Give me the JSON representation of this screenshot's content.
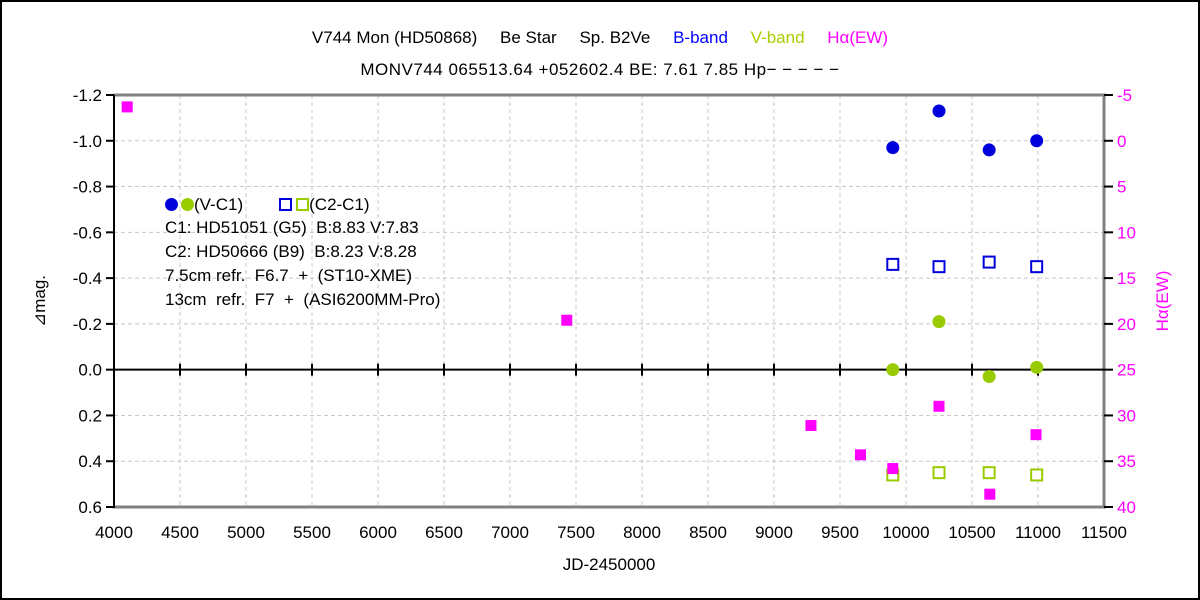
{
  "title": {
    "segments": [
      {
        "text": "V744 Mon (HD50868)",
        "color": "#000000"
      },
      {
        "text": "Be Star",
        "color": "#000000"
      },
      {
        "text": "Sp. B2Ve",
        "color": "#000000"
      },
      {
        "text": "B-band",
        "color": "#0000ff"
      },
      {
        "text": "V-band",
        "color": "#aacc00"
      },
      {
        "text": "Hα(EW)",
        "color": "#ff00ff"
      }
    ],
    "subtitle": "MONV744 065513.64 +052602.4 BE: 7.61 7.85 Hp− − − − −"
  },
  "legend": {
    "vc1_label": "(V-C1)",
    "c2c1_label": "(C2-C1)",
    "lines": [
      "C1: HD51051 (G5)  B:8.83 V:7.83",
      "C2: HD50666 (B9)  B:8.23 V:8.28",
      "7.5cm refr.  F6.7  +  (ST10-XME)",
      "13cm  refr.  F7  +  (ASI6200MM-Pro)"
    ]
  },
  "chart_data": {
    "type": "scatter",
    "grid": "dashed",
    "x_axis": {
      "label": "JD-2450000",
      "min": 4000,
      "max": 11500,
      "step": 500,
      "tick_labels": [
        "4000",
        "4500",
        "5000",
        "5500",
        "6000",
        "6500",
        "7000",
        "7500",
        "8000",
        "8500",
        "9000",
        "9500",
        "10000",
        "10500",
        "11000",
        "11500"
      ]
    },
    "y_left": {
      "label": "⊿mag.",
      "min": -1.2,
      "max": 0.6,
      "step": 0.2,
      "color": "#000000",
      "tick_labels": [
        "-1.2",
        "-1.0",
        "-0.8",
        "-0.6",
        "-0.4",
        "-0.2",
        "0.0",
        "0.2",
        "0.4",
        "0.6"
      ]
    },
    "y_right": {
      "label": "Hα(EW)",
      "min": -5,
      "max": 40,
      "step": 5,
      "color": "#ff00ff",
      "tick_labels": [
        "-5",
        "0",
        "5",
        "10",
        "15",
        "20",
        "25",
        "30",
        "35",
        "40"
      ]
    },
    "series": [
      {
        "name": "B-band (V-C1)",
        "marker": "circle",
        "fill": "filled",
        "color": "#0000dd",
        "axis": "left",
        "points": [
          [
            9900,
            -0.97
          ],
          [
            10250,
            -1.13
          ],
          [
            10630,
            -0.96
          ],
          [
            10990,
            -1.0
          ]
        ]
      },
      {
        "name": "B-band (C2-C1)",
        "marker": "square",
        "fill": "open",
        "color": "#0000dd",
        "axis": "left",
        "points": [
          [
            9900,
            -0.46
          ],
          [
            10250,
            -0.45
          ],
          [
            10630,
            -0.47
          ],
          [
            10990,
            -0.45
          ]
        ]
      },
      {
        "name": "V-band (V-C1)",
        "marker": "circle",
        "fill": "filled",
        "color": "#99cc00",
        "axis": "left",
        "points": [
          [
            9900,
            0.0
          ],
          [
            10250,
            -0.21
          ],
          [
            10630,
            0.03
          ],
          [
            10990,
            -0.01
          ]
        ]
      },
      {
        "name": "V-band (C2-C1)",
        "marker": "square",
        "fill": "open",
        "color": "#99cc00",
        "axis": "left",
        "points": [
          [
            9900,
            0.46
          ],
          [
            10250,
            0.45
          ],
          [
            10630,
            0.45
          ],
          [
            10990,
            0.46
          ]
        ]
      },
      {
        "name": "Hα(EW)",
        "marker": "square",
        "fill": "filled",
        "color": "#ff00ff",
        "axis": "right",
        "points": [
          [
            4100,
            -3.7
          ],
          [
            7430,
            19.6
          ],
          [
            9280,
            31.1
          ],
          [
            9655,
            34.3
          ],
          [
            9900,
            35.8
          ],
          [
            10250,
            29.0
          ],
          [
            10635,
            38.6
          ],
          [
            10985,
            32.1
          ]
        ]
      }
    ]
  },
  "style_colors": {
    "grid": "#c8c8c8",
    "plot_border": "#808080",
    "axis_line": "#000000"
  }
}
